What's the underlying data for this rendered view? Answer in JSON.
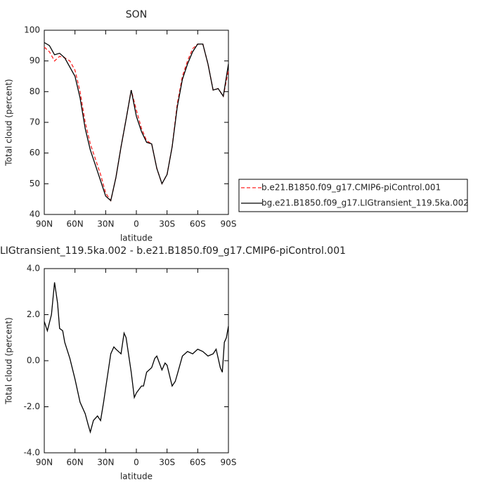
{
  "chart_data": [
    {
      "type": "line",
      "title": "SON",
      "x_label": "latitude",
      "y_label": "Total cloud (percent)",
      "x": [
        90,
        85,
        80,
        75,
        70,
        65,
        60,
        55,
        50,
        45,
        40,
        35,
        30,
        25,
        20,
        15,
        10,
        5,
        0,
        -5,
        -10,
        -15,
        -20,
        -25,
        -30,
        -35,
        -40,
        -45,
        -50,
        -55,
        -60,
        -65,
        -70,
        -75,
        -80,
        -85,
        -90
      ],
      "series": [
        {
          "name": "b.e21.B1850.f09_g17.CMIP6-piControl.001",
          "color": "#ff2020",
          "dash": true,
          "values": [
            94.5,
            93,
            90,
            91.5,
            91,
            90,
            87,
            80,
            70,
            63,
            58,
            53,
            47,
            44.5,
            52,
            62,
            71,
            80.5,
            74,
            68,
            64,
            63,
            55,
            50,
            53,
            62,
            76,
            85,
            90,
            94,
            95.5,
            95.5,
            89,
            80.5,
            81,
            78.5,
            87
          ]
        },
        {
          "name": "bg.e21.B1850.f09_g17.LIGtransient_119.5ka.002",
          "color": "#000000",
          "dash": false,
          "values": [
            96,
            95,
            92,
            92.5,
            91,
            88,
            85,
            78,
            68,
            61,
            56,
            51,
            46,
            44.5,
            52,
            62,
            71,
            80.5,
            72,
            67,
            63.5,
            63,
            55,
            50,
            53,
            62,
            75,
            84,
            89,
            93,
            95.5,
            95.5,
            89,
            80.5,
            81,
            78.5,
            89
          ]
        }
      ],
      "xlim": [
        90,
        -90
      ],
      "xticks": [
        {
          "value": 90,
          "label": "90N"
        },
        {
          "value": 60,
          "label": "60N"
        },
        {
          "value": 30,
          "label": "30N"
        },
        0,
        {
          "value": -30,
          "label": "30S"
        },
        {
          "value": -60,
          "label": "60S"
        },
        {
          "value": -90,
          "label": "90S"
        }
      ],
      "ylim": [
        40,
        100
      ],
      "yticks": [
        40,
        50,
        60,
        70,
        80,
        90,
        100
      ],
      "legend": "right"
    },
    {
      "type": "line",
      "title": "LIGtransient_119.5ka.002 - b.e21.B1850.f09_g17.CMIP6-piControl.001",
      "x_label": "latitude",
      "y_label": "Total cloud (percent)",
      "x": [
        90,
        87,
        83,
        80,
        77,
        75,
        72,
        70,
        65,
        60,
        55,
        50,
        47,
        45,
        42,
        38,
        35,
        32,
        30,
        27,
        25,
        22,
        20,
        15,
        12,
        10,
        5,
        2,
        0,
        -5,
        -7,
        -10,
        -15,
        -18,
        -20,
        -25,
        -28,
        -30,
        -35,
        -38,
        -40,
        -45,
        -50,
        -55,
        -60,
        -65,
        -70,
        -75,
        -78,
        -82,
        -84,
        -86,
        -88,
        -90
      ],
      "series": [
        {
          "color": "#000000",
          "dash": false,
          "values": [
            1.7,
            1.3,
            2.0,
            3.4,
            2.5,
            1.4,
            1.3,
            0.8,
            0.1,
            -0.8,
            -1.8,
            -2.3,
            -2.8,
            -3.1,
            -2.6,
            -2.4,
            -2.6,
            -1.8,
            -1.2,
            -0.3,
            0.3,
            0.6,
            0.5,
            0.3,
            1.2,
            1.0,
            -0.5,
            -1.6,
            -1.4,
            -1.1,
            -1.1,
            -0.5,
            -0.3,
            0.1,
            0.2,
            -0.4,
            -0.1,
            -0.2,
            -1.1,
            -0.9,
            -0.6,
            0.2,
            0.4,
            0.3,
            0.5,
            0.4,
            0.2,
            0.3,
            0.5,
            -0.3,
            -0.5,
            0.8,
            1.0,
            1.5
          ]
        }
      ],
      "xlim": [
        90,
        -90
      ],
      "xticks": [
        {
          "value": 90,
          "label": "90N"
        },
        {
          "value": 60,
          "label": "60N"
        },
        {
          "value": 30,
          "label": "30N"
        },
        0,
        {
          "value": -30,
          "label": "30S"
        },
        {
          "value": -60,
          "label": "60S"
        },
        {
          "value": -90,
          "label": "90S"
        }
      ],
      "ylim": [
        -4,
        4
      ],
      "yticks": [
        {
          "value": -4,
          "label": "-4.0"
        },
        {
          "value": -2,
          "label": "-2.0"
        },
        {
          "value": 0,
          "label": "0.0"
        },
        {
          "value": 2,
          "label": "2.0"
        },
        {
          "value": 4,
          "label": "4.0"
        }
      ]
    }
  ]
}
